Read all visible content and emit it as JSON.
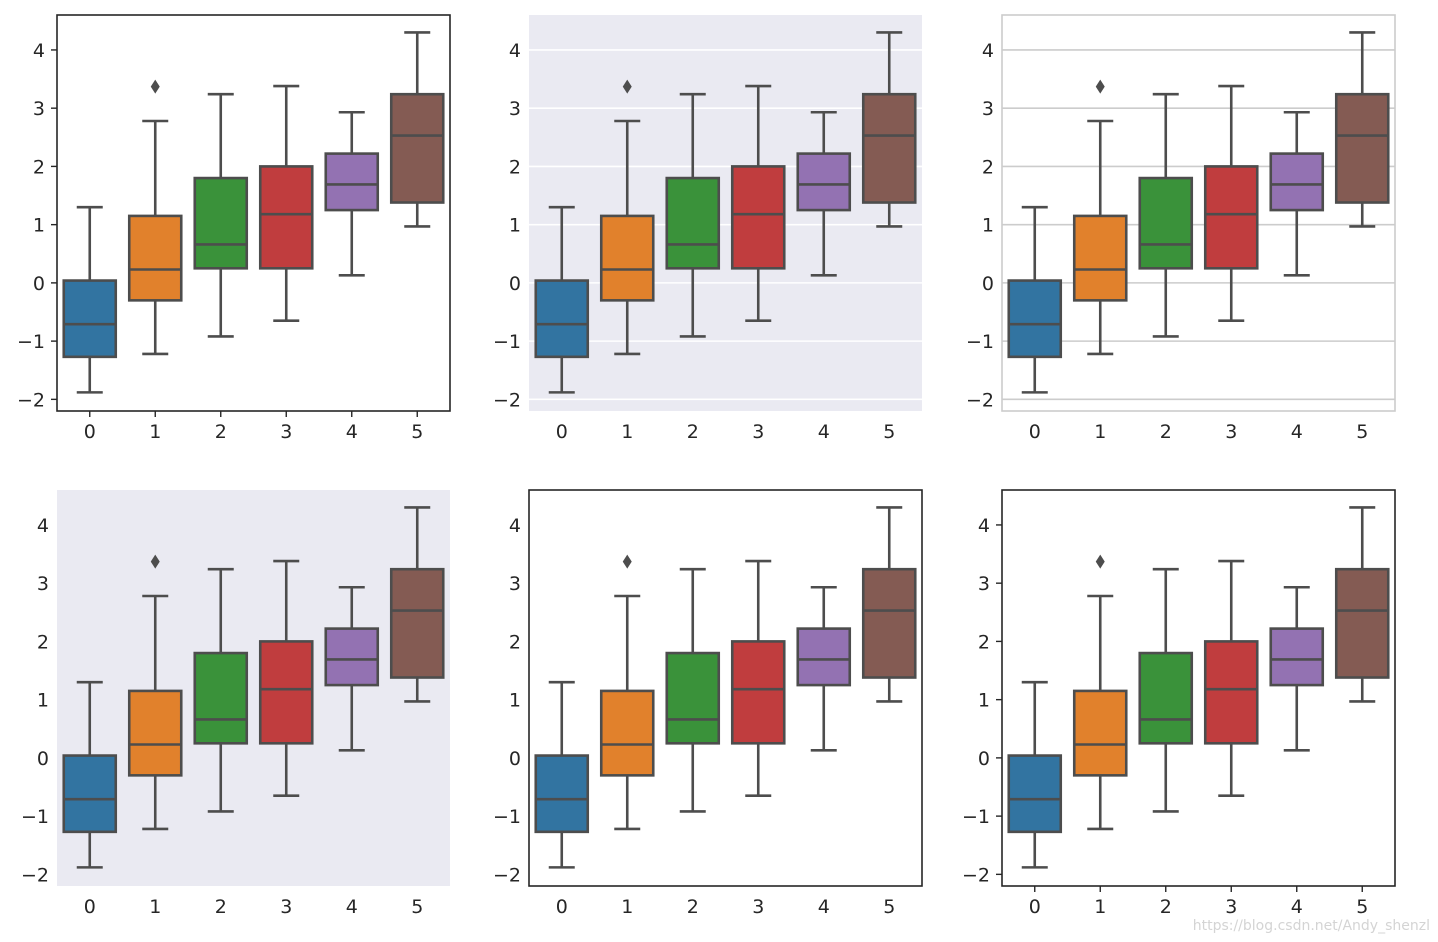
{
  "chart_data": {
    "type": "boxplot",
    "layout": "2x3 grid of identical box plots shown with different seaborn styles",
    "categories": [
      "0",
      "1",
      "2",
      "3",
      "4",
      "5"
    ],
    "y_ticks": [
      -2,
      -1,
      0,
      1,
      2,
      3,
      4
    ],
    "y_tick_labels": [
      "−2",
      "−1",
      "0",
      "1",
      "2",
      "3",
      "4"
    ],
    "ylim": [
      -2.2,
      4.6
    ],
    "boxes": [
      {
        "category": "0",
        "whisker_low": -1.88,
        "q1": -1.27,
        "median": -0.71,
        "q3": 0.04,
        "whisker_high": 1.3,
        "color": "#3274a1",
        "outliers": []
      },
      {
        "category": "1",
        "whisker_low": -1.22,
        "q1": -0.3,
        "median": 0.23,
        "q3": 1.15,
        "whisker_high": 2.78,
        "color": "#e1812c",
        "outliers": [
          3.37
        ]
      },
      {
        "category": "2",
        "whisker_low": -0.92,
        "q1": 0.25,
        "median": 0.66,
        "q3": 1.8,
        "whisker_high": 3.24,
        "color": "#3a923a",
        "outliers": []
      },
      {
        "category": "3",
        "whisker_low": -0.65,
        "q1": 0.25,
        "median": 1.18,
        "q3": 2.0,
        "whisker_high": 3.38,
        "color": "#c03d3e",
        "outliers": []
      },
      {
        "category": "4",
        "whisker_low": 0.13,
        "q1": 1.25,
        "median": 1.69,
        "q3": 2.22,
        "whisker_high": 2.93,
        "color": "#9372b2",
        "outliers": []
      },
      {
        "category": "5",
        "whisker_low": 0.97,
        "q1": 1.38,
        "median": 2.53,
        "q3": 3.24,
        "whisker_high": 4.3,
        "color": "#845b53",
        "outliers": []
      }
    ],
    "line_color": "#4d4d4d",
    "panels": [
      {
        "style": "ticks",
        "background": "#ffffff",
        "grid": false,
        "frame": "full",
        "frame_color": "#262626",
        "grid_color": "#ffffff"
      },
      {
        "style": "darkgrid",
        "background": "#eaeaf2",
        "grid": true,
        "frame": "none",
        "frame_color": "#ffffff",
        "grid_color": "#ffffff"
      },
      {
        "style": "whitegrid",
        "background": "#ffffff",
        "grid": true,
        "frame": "full",
        "frame_color": "#cccccc",
        "grid_color": "#cccccc"
      },
      {
        "style": "dark",
        "background": "#eaeaf2",
        "grid": false,
        "frame": "none",
        "frame_color": "#ffffff",
        "grid_color": "#ffffff"
      },
      {
        "style": "white",
        "background": "#ffffff",
        "grid": false,
        "frame": "full",
        "frame_color": "#262626",
        "grid_color": "#ffffff"
      },
      {
        "style": "ticks",
        "background": "#ffffff",
        "grid": false,
        "frame": "full",
        "frame_color": "#262626",
        "grid_color": "#ffffff"
      }
    ]
  },
  "watermark": "https://blog.csdn.net/Andy_shenzl"
}
